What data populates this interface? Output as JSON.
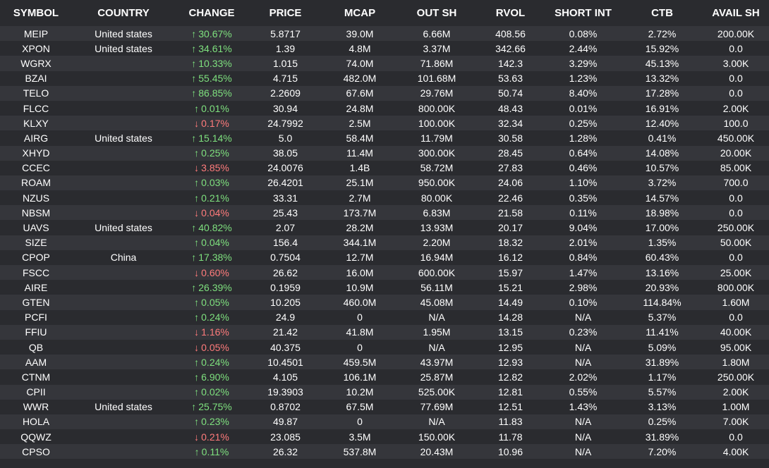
{
  "colors": {
    "background": "#2a2b2f",
    "row_alt": "#35363b",
    "text": "#ffffff",
    "up": "#7ee07e",
    "down": "#ff7b7b"
  },
  "icons": {
    "up": "arrow-up-icon",
    "down": "arrow-down-icon"
  },
  "columns": [
    "SYMBOL",
    "COUNTRY",
    "CHANGE",
    "PRICE",
    "MCAP",
    "OUT SH",
    "RVOL",
    "SHORT INT",
    "CTB",
    "AVAIL SH"
  ],
  "rows": [
    {
      "symbol": "MEIP",
      "country": "United states",
      "dir": "up",
      "change": "30.67%",
      "price": "5.8717",
      "mcap": "39.0M",
      "out_sh": "6.66M",
      "rvol": "408.56",
      "short_int": "0.08%",
      "ctb": "2.72%",
      "avail_sh": "200.00K"
    },
    {
      "symbol": "XPON",
      "country": "United states",
      "dir": "up",
      "change": "34.61%",
      "price": "1.39",
      "mcap": "4.8M",
      "out_sh": "3.37M",
      "rvol": "342.66",
      "short_int": "2.44%",
      "ctb": "15.92%",
      "avail_sh": "0.0"
    },
    {
      "symbol": "WGRX",
      "country": "",
      "dir": "up",
      "change": "10.33%",
      "price": "1.015",
      "mcap": "74.0M",
      "out_sh": "71.86M",
      "rvol": "142.3",
      "short_int": "3.29%",
      "ctb": "45.13%",
      "avail_sh": "3.00K"
    },
    {
      "symbol": "BZAI",
      "country": "",
      "dir": "up",
      "change": "55.45%",
      "price": "4.715",
      "mcap": "482.0M",
      "out_sh": "101.68M",
      "rvol": "53.63",
      "short_int": "1.23%",
      "ctb": "13.32%",
      "avail_sh": "0.0"
    },
    {
      "symbol": "TELO",
      "country": "",
      "dir": "up",
      "change": "86.85%",
      "price": "2.2609",
      "mcap": "67.6M",
      "out_sh": "29.76M",
      "rvol": "50.74",
      "short_int": "8.40%",
      "ctb": "17.28%",
      "avail_sh": "0.0"
    },
    {
      "symbol": "FLCC",
      "country": "",
      "dir": "up",
      "change": "0.01%",
      "price": "30.94",
      "mcap": "24.8M",
      "out_sh": "800.00K",
      "rvol": "48.43",
      "short_int": "0.01%",
      "ctb": "16.91%",
      "avail_sh": "2.00K"
    },
    {
      "symbol": "KLXY",
      "country": "",
      "dir": "down",
      "change": "0.17%",
      "price": "24.7992",
      "mcap": "2.5M",
      "out_sh": "100.00K",
      "rvol": "32.34",
      "short_int": "0.25%",
      "ctb": "12.40%",
      "avail_sh": "100.0"
    },
    {
      "symbol": "AIRG",
      "country": "United states",
      "dir": "up",
      "change": "15.14%",
      "price": "5.0",
      "mcap": "58.4M",
      "out_sh": "11.79M",
      "rvol": "30.58",
      "short_int": "1.28%",
      "ctb": "0.41%",
      "avail_sh": "450.00K"
    },
    {
      "symbol": "XHYD",
      "country": "",
      "dir": "up",
      "change": "0.25%",
      "price": "38.05",
      "mcap": "11.4M",
      "out_sh": "300.00K",
      "rvol": "28.45",
      "short_int": "0.64%",
      "ctb": "14.08%",
      "avail_sh": "20.00K"
    },
    {
      "symbol": "CCEC",
      "country": "",
      "dir": "down",
      "change": "3.85%",
      "price": "24.0076",
      "mcap": "1.4B",
      "out_sh": "58.72M",
      "rvol": "27.83",
      "short_int": "0.46%",
      "ctb": "10.57%",
      "avail_sh": "85.00K"
    },
    {
      "symbol": "ROAM",
      "country": "",
      "dir": "up",
      "change": "0.03%",
      "price": "26.4201",
      "mcap": "25.1M",
      "out_sh": "950.00K",
      "rvol": "24.06",
      "short_int": "1.10%",
      "ctb": "3.72%",
      "avail_sh": "700.0"
    },
    {
      "symbol": "NZUS",
      "country": "",
      "dir": "up",
      "change": "0.21%",
      "price": "33.31",
      "mcap": "2.7M",
      "out_sh": "80.00K",
      "rvol": "22.46",
      "short_int": "0.35%",
      "ctb": "14.57%",
      "avail_sh": "0.0"
    },
    {
      "symbol": "NBSM",
      "country": "",
      "dir": "down",
      "change": "0.04%",
      "price": "25.43",
      "mcap": "173.7M",
      "out_sh": "6.83M",
      "rvol": "21.58",
      "short_int": "0.11%",
      "ctb": "18.98%",
      "avail_sh": "0.0"
    },
    {
      "symbol": "UAVS",
      "country": "United states",
      "dir": "up",
      "change": "40.82%",
      "price": "2.07",
      "mcap": "28.2M",
      "out_sh": "13.93M",
      "rvol": "20.17",
      "short_int": "9.04%",
      "ctb": "17.00%",
      "avail_sh": "250.00K"
    },
    {
      "symbol": "SIZE",
      "country": "",
      "dir": "up",
      "change": "0.04%",
      "price": "156.4",
      "mcap": "344.1M",
      "out_sh": "2.20M",
      "rvol": "18.32",
      "short_int": "2.01%",
      "ctb": "1.35%",
      "avail_sh": "50.00K"
    },
    {
      "symbol": "CPOP",
      "country": "China",
      "dir": "up",
      "change": "17.38%",
      "price": "0.7504",
      "mcap": "12.7M",
      "out_sh": "16.94M",
      "rvol": "16.12",
      "short_int": "0.84%",
      "ctb": "60.43%",
      "avail_sh": "0.0"
    },
    {
      "symbol": "FSCC",
      "country": "",
      "dir": "down",
      "change": "0.60%",
      "price": "26.62",
      "mcap": "16.0M",
      "out_sh": "600.00K",
      "rvol": "15.97",
      "short_int": "1.47%",
      "ctb": "13.16%",
      "avail_sh": "25.00K"
    },
    {
      "symbol": "AIRE",
      "country": "",
      "dir": "up",
      "change": "26.39%",
      "price": "0.1959",
      "mcap": "10.9M",
      "out_sh": "56.11M",
      "rvol": "15.21",
      "short_int": "2.98%",
      "ctb": "20.93%",
      "avail_sh": "800.00K"
    },
    {
      "symbol": "GTEN",
      "country": "",
      "dir": "up",
      "change": "0.05%",
      "price": "10.205",
      "mcap": "460.0M",
      "out_sh": "45.08M",
      "rvol": "14.49",
      "short_int": "0.10%",
      "ctb": "114.84%",
      "avail_sh": "1.60M"
    },
    {
      "symbol": "PCFI",
      "country": "",
      "dir": "up",
      "change": "0.24%",
      "price": "24.9",
      "mcap": "0",
      "out_sh": "N/A",
      "rvol": "14.28",
      "short_int": "N/A",
      "ctb": "5.37%",
      "avail_sh": "0.0"
    },
    {
      "symbol": "FFIU",
      "country": "",
      "dir": "down",
      "change": "1.16%",
      "price": "21.42",
      "mcap": "41.8M",
      "out_sh": "1.95M",
      "rvol": "13.15",
      "short_int": "0.23%",
      "ctb": "11.41%",
      "avail_sh": "40.00K"
    },
    {
      "symbol": "QB",
      "country": "",
      "dir": "down",
      "change": "0.05%",
      "price": "40.375",
      "mcap": "0",
      "out_sh": "N/A",
      "rvol": "12.95",
      "short_int": "N/A",
      "ctb": "5.09%",
      "avail_sh": "95.00K"
    },
    {
      "symbol": "AAM",
      "country": "",
      "dir": "up",
      "change": "0.24%",
      "price": "10.4501",
      "mcap": "459.5M",
      "out_sh": "43.97M",
      "rvol": "12.93",
      "short_int": "N/A",
      "ctb": "31.89%",
      "avail_sh": "1.80M"
    },
    {
      "symbol": "CTNM",
      "country": "",
      "dir": "up",
      "change": "6.90%",
      "price": "4.105",
      "mcap": "106.1M",
      "out_sh": "25.87M",
      "rvol": "12.82",
      "short_int": "2.02%",
      "ctb": "1.17%",
      "avail_sh": "250.00K"
    },
    {
      "symbol": "CPII",
      "country": "",
      "dir": "up",
      "change": "0.02%",
      "price": "19.3903",
      "mcap": "10.2M",
      "out_sh": "525.00K",
      "rvol": "12.81",
      "short_int": "0.55%",
      "ctb": "5.57%",
      "avail_sh": "2.00K"
    },
    {
      "symbol": "WWR",
      "country": "United states",
      "dir": "up",
      "change": "25.75%",
      "price": "0.8702",
      "mcap": "67.5M",
      "out_sh": "77.69M",
      "rvol": "12.51",
      "short_int": "1.43%",
      "ctb": "3.13%",
      "avail_sh": "1.00M"
    },
    {
      "symbol": "HOLA",
      "country": "",
      "dir": "up",
      "change": "0.23%",
      "price": "49.87",
      "mcap": "0",
      "out_sh": "N/A",
      "rvol": "11.83",
      "short_int": "N/A",
      "ctb": "0.25%",
      "avail_sh": "7.00K"
    },
    {
      "symbol": "QQWZ",
      "country": "",
      "dir": "down",
      "change": "0.21%",
      "price": "23.085",
      "mcap": "3.5M",
      "out_sh": "150.00K",
      "rvol": "11.78",
      "short_int": "N/A",
      "ctb": "31.89%",
      "avail_sh": "0.0"
    },
    {
      "symbol": "CPSO",
      "country": "",
      "dir": "up",
      "change": "0.11%",
      "price": "26.32",
      "mcap": "537.8M",
      "out_sh": "20.43M",
      "rvol": "10.96",
      "short_int": "N/A",
      "ctb": "7.20%",
      "avail_sh": "4.00K"
    }
  ]
}
